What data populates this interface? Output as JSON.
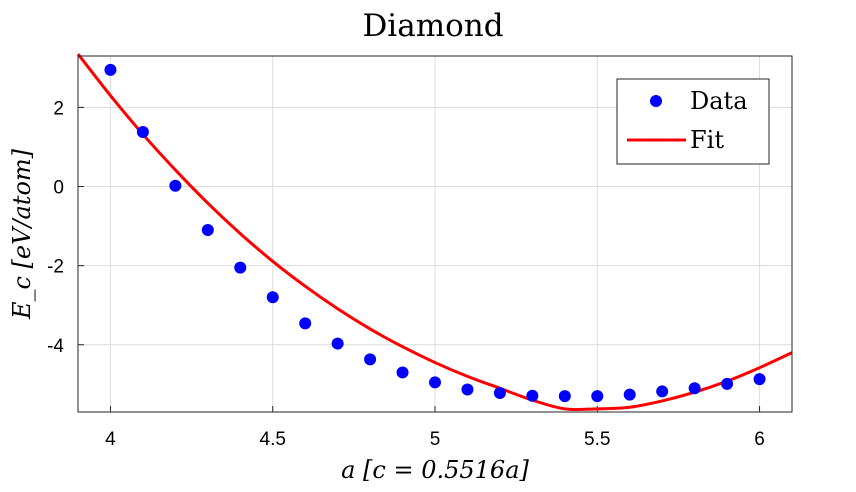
{
  "chart_data": {
    "type": "scatter",
    "title": "Diamond",
    "xlabel": "a [c = 0.5516a]",
    "ylabel": "E_c [eV/atom]",
    "xlim": [
      3.9,
      6.1
    ],
    "ylim": [
      -5.7,
      3.3
    ],
    "x_ticks": [
      "4",
      "4.5",
      "5",
      "5.5",
      "6"
    ],
    "y_ticks": [
      "2",
      "0",
      "-2",
      "-4"
    ],
    "grid": true,
    "legend_position": "top-right",
    "series": [
      {
        "name": "Data",
        "kind": "scatter",
        "color": "#0000ff",
        "x": [
          4.0,
          4.1,
          4.2,
          4.3,
          4.4,
          4.5,
          4.6,
          4.7,
          4.8,
          4.9,
          5.0,
          5.1,
          5.2,
          5.3,
          5.4,
          5.5,
          5.6,
          5.7,
          5.8,
          5.9,
          6.0
        ],
        "y": [
          2.95,
          1.38,
          0.02,
          -1.1,
          -2.05,
          -2.8,
          -3.46,
          -3.97,
          -4.37,
          -4.7,
          -4.95,
          -5.13,
          -5.22,
          -5.29,
          -5.3,
          -5.3,
          -5.26,
          -5.18,
          -5.1,
          -4.99,
          -4.87
        ]
      },
      {
        "name": "Fit",
        "kind": "line",
        "color": "#ff0000",
        "x": [
          3.9,
          4.0,
          4.1,
          4.2,
          4.3,
          4.4,
          4.5,
          4.6,
          4.7,
          4.8,
          4.9,
          5.0,
          5.1,
          5.2,
          5.3,
          5.4,
          5.5,
          5.6,
          5.7,
          5.8,
          5.9,
          6.0,
          6.1
        ],
        "y": [
          3.35,
          2.3,
          1.32,
          0.42,
          -0.42,
          -1.19,
          -1.89,
          -2.52,
          -3.09,
          -3.6,
          -4.05,
          -4.45,
          -4.8,
          -5.1,
          -5.4,
          -5.62,
          -5.62,
          -5.58,
          -5.42,
          -5.2,
          -4.92,
          -4.58,
          -4.2
        ]
      }
    ]
  }
}
